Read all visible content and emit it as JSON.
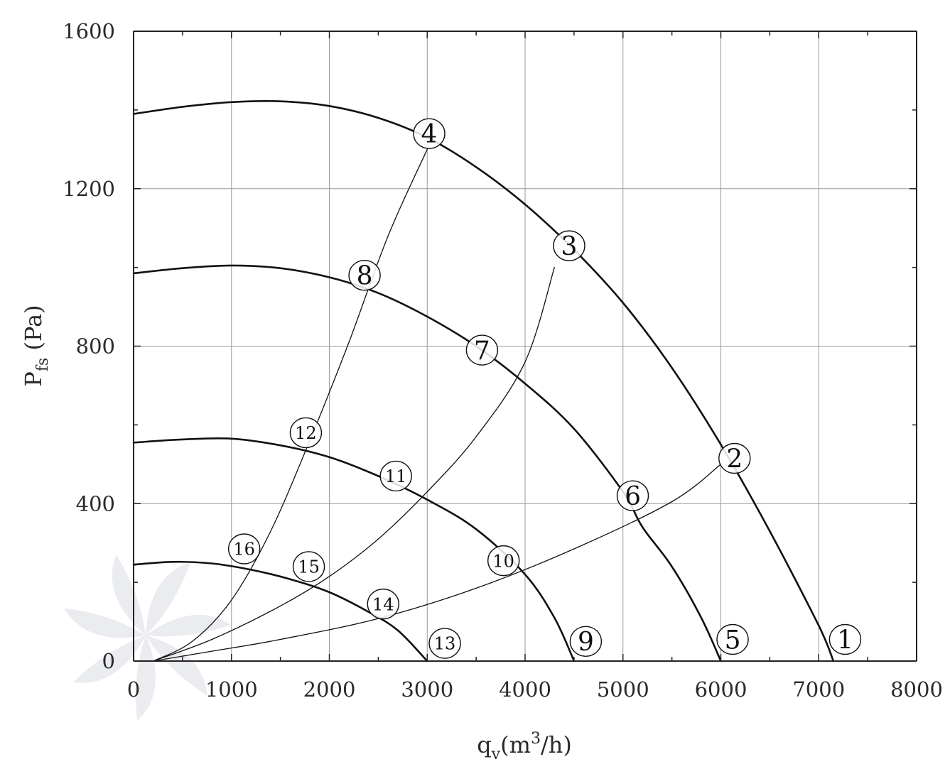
{
  "chart_data": {
    "type": "line",
    "xlabel": {
      "main": "q",
      "sub": "v",
      "rest": "(m",
      "sup": "3",
      "end": "/h)"
    },
    "ylabel": {
      "main": "P",
      "sub": "fs",
      "rest": " (Pa)"
    },
    "xlim": [
      0,
      8000
    ],
    "ylim": [
      0,
      1600
    ],
    "x_ticks": [
      "0",
      "1000",
      "2000",
      "3000",
      "4000",
      "5000",
      "6000",
      "7000",
      "8000"
    ],
    "y_ticks": [
      "0",
      "400",
      "800",
      "1200",
      "1600"
    ],
    "grid": true,
    "colors": {
      "curve": "#111111",
      "grid": "#9a9a9a",
      "axis": "#222222",
      "watermark": "#d9dce2"
    },
    "series": [
      {
        "points": [
          [
            0,
            1390
          ],
          [
            500,
            1408
          ],
          [
            1000,
            1420
          ],
          [
            1500,
            1422
          ],
          [
            2000,
            1410
          ],
          [
            2500,
            1380
          ],
          [
            3000,
            1330
          ],
          [
            3500,
            1255
          ],
          [
            4000,
            1160
          ],
          [
            4500,
            1045
          ],
          [
            5000,
            910
          ],
          [
            5500,
            745
          ],
          [
            6000,
            550
          ],
          [
            6500,
            330
          ],
          [
            7000,
            90
          ],
          [
            7150,
            0
          ]
        ],
        "weight": 2.6
      },
      {
        "points": [
          [
            0,
            985
          ],
          [
            500,
            998
          ],
          [
            1000,
            1005
          ],
          [
            1500,
            998
          ],
          [
            2000,
            975
          ],
          [
            2500,
            935
          ],
          [
            3000,
            875
          ],
          [
            3500,
            800
          ],
          [
            4000,
            705
          ],
          [
            4500,
            590
          ],
          [
            5000,
            430
          ],
          [
            5200,
            340
          ],
          [
            5500,
            240
          ],
          [
            5800,
            110
          ],
          [
            6000,
            0
          ]
        ],
        "weight": 2.6
      },
      {
        "points": [
          [
            0,
            555
          ],
          [
            500,
            563
          ],
          [
            1000,
            565
          ],
          [
            1500,
            548
          ],
          [
            2000,
            518
          ],
          [
            2500,
            470
          ],
          [
            3000,
            410
          ],
          [
            3500,
            335
          ],
          [
            4000,
            220
          ],
          [
            4300,
            110
          ],
          [
            4500,
            0
          ]
        ],
        "weight": 2.6
      },
      {
        "points": [
          [
            0,
            245
          ],
          [
            400,
            252
          ],
          [
            800,
            248
          ],
          [
            1200,
            232
          ],
          [
            1600,
            208
          ],
          [
            2000,
            175
          ],
          [
            2400,
            125
          ],
          [
            2700,
            78
          ],
          [
            3000,
            0
          ]
        ],
        "weight": 2.6
      },
      {
        "points": [
          [
            200,
            0
          ],
          [
            800,
            25
          ],
          [
            1500,
            55
          ],
          [
            2500,
            108
          ],
          [
            3500,
            185
          ],
          [
            4500,
            285
          ],
          [
            5500,
            405
          ],
          [
            6000,
            500
          ]
        ],
        "weight": 1.3
      },
      {
        "points": [
          [
            200,
            0
          ],
          [
            800,
            55
          ],
          [
            1500,
            140
          ],
          [
            2000,
            215
          ],
          [
            2500,
            310
          ],
          [
            3000,
            430
          ],
          [
            3500,
            570
          ],
          [
            4000,
            760
          ],
          [
            4300,
            1000
          ]
        ],
        "weight": 1.3
      },
      {
        "points": [
          [
            200,
            0
          ],
          [
            600,
            50
          ],
          [
            1000,
            155
          ],
          [
            1400,
            330
          ],
          [
            1800,
            560
          ],
          [
            2200,
            810
          ],
          [
            2600,
            1080
          ],
          [
            3000,
            1300
          ]
        ],
        "weight": 1.3
      }
    ],
    "markers": [
      {
        "label": "1",
        "x": 7270,
        "y": 55
      },
      {
        "label": "2",
        "x": 6140,
        "y": 515
      },
      {
        "label": "3",
        "x": 4450,
        "y": 1055
      },
      {
        "label": "4",
        "x": 3020,
        "y": 1340
      },
      {
        "label": "5",
        "x": 6120,
        "y": 55
      },
      {
        "label": "6",
        "x": 5100,
        "y": 420
      },
      {
        "label": "7",
        "x": 3560,
        "y": 790
      },
      {
        "label": "8",
        "x": 2360,
        "y": 980
      },
      {
        "label": "9",
        "x": 4620,
        "y": 50
      },
      {
        "label": "10",
        "x": 3780,
        "y": 255
      },
      {
        "label": "11",
        "x": 2680,
        "y": 470
      },
      {
        "label": "12",
        "x": 1760,
        "y": 580
      },
      {
        "label": "13",
        "x": 3180,
        "y": 45
      },
      {
        "label": "14",
        "x": 2550,
        "y": 145
      },
      {
        "label": "15",
        "x": 1790,
        "y": 240
      },
      {
        "label": "16",
        "x": 1130,
        "y": 285
      }
    ]
  }
}
